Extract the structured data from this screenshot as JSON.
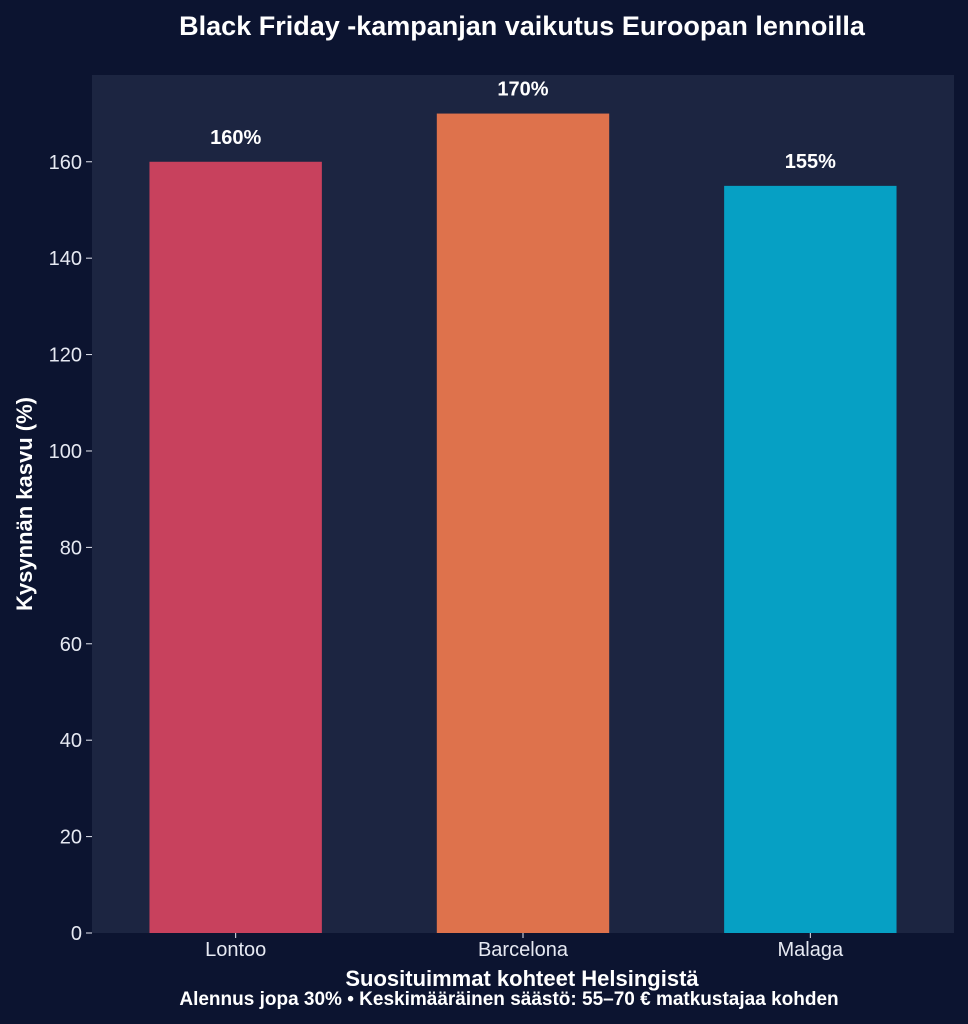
{
  "chart_data": {
    "type": "bar",
    "title": "Black Friday -kampanjan vaikutus Euroopan lennoilla",
    "xlabel": "Suosituimmat kohteet Helsingistä",
    "ylabel": "Kysynnän kasvu (%)",
    "categories": [
      "Lontoo",
      "Barcelona",
      "Malaga"
    ],
    "values": [
      160,
      170,
      155
    ],
    "data_labels": [
      "160%",
      "170%",
      "155%"
    ],
    "ylim": [
      0,
      178
    ],
    "yticks": [
      0,
      20,
      40,
      60,
      80,
      100,
      120,
      140,
      160
    ],
    "grid": false,
    "colors": {
      "background": "#0c1430",
      "plot_area": "#1c2541",
      "bars": [
        "#c8415d",
        "#de724c",
        "#06a0c4"
      ]
    },
    "footnote": "Alennus jopa 30% • Keskimääräinen säästö: 55–70 € matkustajaa kohden"
  }
}
